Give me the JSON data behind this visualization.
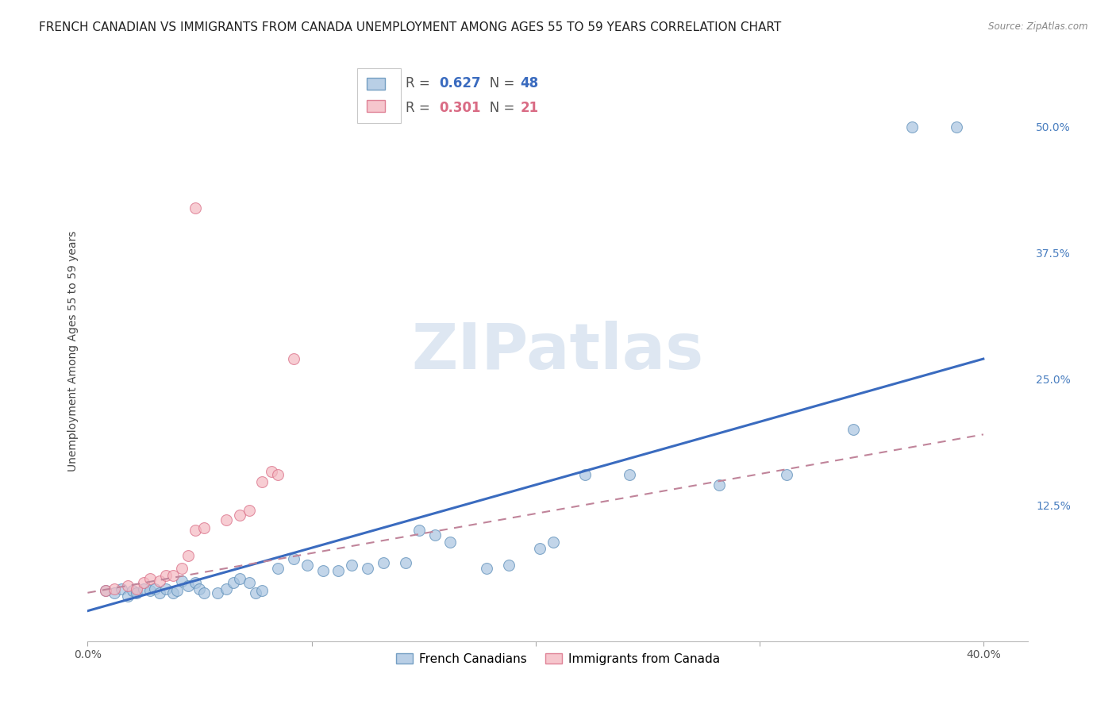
{
  "title": "FRENCH CANADIAN VS IMMIGRANTS FROM CANADA UNEMPLOYMENT AMONG AGES 55 TO 59 YEARS CORRELATION CHART",
  "source": "Source: ZipAtlas.com",
  "ylabel": "Unemployment Among Ages 55 to 59 years",
  "xlim": [
    0.0,
    0.42
  ],
  "ylim": [
    -0.01,
    0.565
  ],
  "xticks": [
    0.0,
    0.1,
    0.2,
    0.3,
    0.4
  ],
  "xticklabels": [
    "0.0%",
    "",
    "",
    "",
    "40.0%"
  ],
  "yticks_right": [
    0.125,
    0.25,
    0.375,
    0.5
  ],
  "yticklabels_right": [
    "12.5%",
    "25.0%",
    "37.5%",
    "50.0%"
  ],
  "background_color": "#ffffff",
  "grid_color": "#cccccc",
  "watermark_zip": "ZIP",
  "watermark_atlas": "atlas",
  "legend_r1_label": "R = ",
  "legend_r1_val": "0.627",
  "legend_n1_label": "N = ",
  "legend_n1_val": "48",
  "legend_r2_label": "R = ",
  "legend_r2_val": "0.301",
  "legend_n2_label": "N = ",
  "legend_n2_val": "21",
  "blue_color": "#a8c4e0",
  "blue_edge_color": "#5b8db8",
  "pink_color": "#f4b8c1",
  "pink_edge_color": "#d96b84",
  "blue_line_color": "#3a6bbf",
  "pink_line_color": "#c0849a",
  "right_axis_color": "#4a7fc0",
  "blue_scatter": [
    [
      0.008,
      0.04
    ],
    [
      0.012,
      0.038
    ],
    [
      0.015,
      0.042
    ],
    [
      0.018,
      0.035
    ],
    [
      0.02,
      0.04
    ],
    [
      0.022,
      0.038
    ],
    [
      0.025,
      0.042
    ],
    [
      0.028,
      0.04
    ],
    [
      0.03,
      0.042
    ],
    [
      0.032,
      0.038
    ],
    [
      0.035,
      0.042
    ],
    [
      0.038,
      0.038
    ],
    [
      0.04,
      0.04
    ],
    [
      0.042,
      0.05
    ],
    [
      0.045,
      0.045
    ],
    [
      0.048,
      0.048
    ],
    [
      0.05,
      0.042
    ],
    [
      0.052,
      0.038
    ],
    [
      0.058,
      0.038
    ],
    [
      0.062,
      0.042
    ],
    [
      0.065,
      0.048
    ],
    [
      0.068,
      0.052
    ],
    [
      0.072,
      0.048
    ],
    [
      0.075,
      0.038
    ],
    [
      0.078,
      0.04
    ],
    [
      0.085,
      0.062
    ],
    [
      0.092,
      0.072
    ],
    [
      0.098,
      0.065
    ],
    [
      0.105,
      0.06
    ],
    [
      0.112,
      0.06
    ],
    [
      0.118,
      0.065
    ],
    [
      0.125,
      0.062
    ],
    [
      0.132,
      0.068
    ],
    [
      0.142,
      0.068
    ],
    [
      0.148,
      0.1
    ],
    [
      0.155,
      0.095
    ],
    [
      0.162,
      0.088
    ],
    [
      0.178,
      0.062
    ],
    [
      0.188,
      0.065
    ],
    [
      0.202,
      0.082
    ],
    [
      0.208,
      0.088
    ],
    [
      0.222,
      0.155
    ],
    [
      0.242,
      0.155
    ],
    [
      0.282,
      0.145
    ],
    [
      0.312,
      0.155
    ],
    [
      0.342,
      0.2
    ],
    [
      0.368,
      0.5
    ],
    [
      0.388,
      0.5
    ]
  ],
  "pink_scatter": [
    [
      0.008,
      0.04
    ],
    [
      0.012,
      0.042
    ],
    [
      0.018,
      0.045
    ],
    [
      0.022,
      0.042
    ],
    [
      0.025,
      0.048
    ],
    [
      0.028,
      0.052
    ],
    [
      0.032,
      0.05
    ],
    [
      0.035,
      0.055
    ],
    [
      0.038,
      0.055
    ],
    [
      0.042,
      0.062
    ],
    [
      0.045,
      0.075
    ],
    [
      0.048,
      0.1
    ],
    [
      0.052,
      0.102
    ],
    [
      0.062,
      0.11
    ],
    [
      0.068,
      0.115
    ],
    [
      0.072,
      0.12
    ],
    [
      0.078,
      0.148
    ],
    [
      0.082,
      0.158
    ],
    [
      0.085,
      0.155
    ],
    [
      0.092,
      0.27
    ],
    [
      0.048,
      0.42
    ]
  ],
  "blue_trendline_x": [
    0.0,
    0.4
  ],
  "blue_trendline_y": [
    0.02,
    0.27
  ],
  "pink_trendline_x": [
    0.0,
    0.4
  ],
  "pink_trendline_y": [
    0.038,
    0.195
  ],
  "title_fontsize": 11,
  "axis_label_fontsize": 10,
  "tick_fontsize": 10,
  "legend_fontsize": 12,
  "watermark_fontsize": 58,
  "scatter_size": 100
}
